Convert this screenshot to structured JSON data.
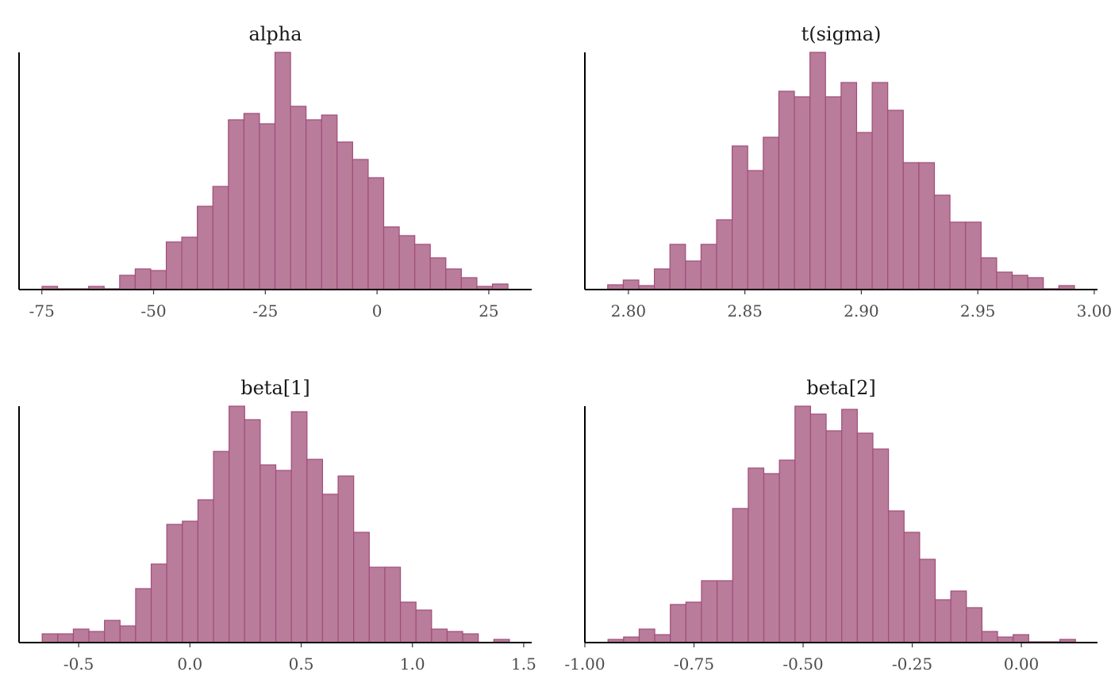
{
  "chart_data": [
    {
      "type": "bar",
      "title": "alpha",
      "xlabel": "",
      "ylabel": "",
      "xlim": [
        -80.1,
        34.6
      ],
      "bin_start": -74.96,
      "bin_width": 3.475,
      "counts": [
        4,
        1,
        1,
        4,
        1,
        18,
        26,
        24,
        60,
        66,
        105,
        130,
        214,
        222,
        209,
        299,
        231,
        214,
        220,
        186,
        164,
        141,
        79,
        68,
        57,
        40,
        26,
        15,
        4,
        7
      ],
      "xticks": [
        -75,
        -50,
        -25,
        0,
        25
      ],
      "xtick_labels": [
        "-75",
        "-50",
        "-25",
        "0",
        "25"
      ],
      "grid": false
    },
    {
      "type": "bar",
      "title": "t(sigma)",
      "xlabel": "",
      "ylabel": "",
      "xlim": [
        2.7813,
        3.0014
      ],
      "bin_start": 2.7911,
      "bin_width": 0.00668,
      "counts": [
        6,
        12,
        5,
        26,
        57,
        36,
        57,
        88,
        181,
        150,
        192,
        250,
        243,
        299,
        243,
        261,
        198,
        261,
        226,
        160,
        160,
        119,
        85,
        85,
        40,
        22,
        18,
        15,
        1,
        5
      ],
      "xticks": [
        2.8,
        2.85,
        2.9,
        2.95,
        3.0
      ],
      "xtick_labels": [
        "2.80",
        "2.85",
        "2.90",
        "2.95",
        "3.00"
      ],
      "grid": false
    },
    {
      "type": "bar",
      "title": "beta[1]",
      "xlabel": "",
      "ylabel": "",
      "xlim": [
        -0.768,
        1.536
      ],
      "bin_start": -0.664,
      "bin_width": 0.07,
      "counts": [
        11,
        11,
        17,
        14,
        28,
        21,
        68,
        99,
        149,
        153,
        180,
        241,
        298,
        281,
        224,
        217,
        291,
        231,
        187,
        210,
        139,
        95,
        95,
        51,
        41,
        17,
        14,
        11,
        0,
        4
      ],
      "xticks": [
        -0.5,
        0.0,
        0.5,
        1.0,
        1.5
      ],
      "xtick_labels": [
        "-0.5",
        "0.0",
        "0.5",
        "1.0",
        "1.5"
      ],
      "grid": false
    },
    {
      "type": "bar",
      "title": "beta[2]",
      "xlabel": "",
      "ylabel": "",
      "xlim": [
        -1.0,
        0.1745
      ],
      "bin_start": -0.947,
      "bin_width": 0.0357,
      "counts": [
        4,
        7,
        17,
        10,
        48,
        51,
        78,
        78,
        169,
        220,
        213,
        230,
        298,
        288,
        267,
        294,
        264,
        244,
        166,
        139,
        105,
        54,
        65,
        44,
        14,
        7,
        10,
        1,
        1,
        4
      ],
      "xticks": [
        -1.0,
        -0.75,
        -0.5,
        -0.25,
        0.0
      ],
      "xtick_labels": [
        "-1.00",
        "-0.75",
        "-0.50",
        "-0.25",
        "0.00"
      ],
      "grid": false
    }
  ],
  "colors": {
    "bar_fill": "#b97c9b",
    "bar_edge": "#a04d7a",
    "axis": "#000000"
  }
}
